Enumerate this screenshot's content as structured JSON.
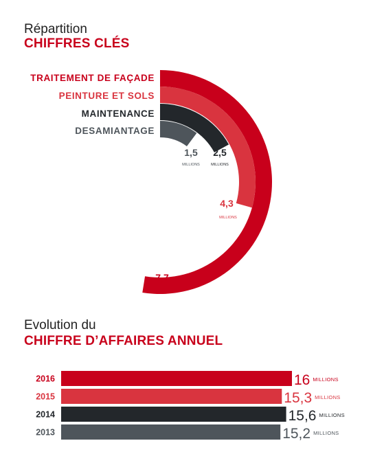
{
  "colors": {
    "red": "#c8001b",
    "light_red": "#d9343f",
    "dark": "#23272b",
    "grey": "#4e555b",
    "heading": "#c8001b"
  },
  "section1": {
    "title": "Répartition",
    "heading": "CHIFFRES CLÉS"
  },
  "section2": {
    "title": "Evolution du",
    "heading": "CHIFFRE D’AFFAIRES ANNUEL"
  },
  "chart_data": [
    {
      "type": "radial-bar",
      "unit": "MILLIONS",
      "categories": [
        "TRAITEMENT DE FAÇADE",
        "PEINTURE ET SOLS",
        "MAINTENANCE",
        "DESAMIANTAGE"
      ],
      "values": [
        7.7,
        4.3,
        2.5,
        1.5
      ],
      "value_labels": [
        "7,7",
        "4,3",
        "2,5",
        "1,5"
      ],
      "colors": [
        "#c8001b",
        "#d9343f",
        "#23272b",
        "#4e555b"
      ]
    },
    {
      "type": "bar",
      "orientation": "horizontal",
      "unit": "MILLIONS",
      "categories": [
        "2016",
        "2015",
        "2014",
        "2013"
      ],
      "values": [
        16,
        15.3,
        15.6,
        15.2
      ],
      "value_labels": [
        "16",
        "15,3",
        "15,6",
        "15,2"
      ],
      "colors": [
        "#c8001b",
        "#d9343f",
        "#23272b",
        "#4e555b"
      ]
    }
  ]
}
